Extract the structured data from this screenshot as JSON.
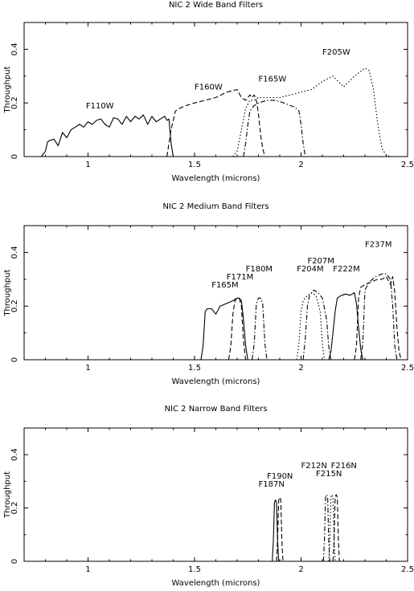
{
  "chart_data": [
    {
      "type": "line",
      "title": "NIC 2 Wide Band Filters",
      "xlabel": "Wavelength (microns)",
      "ylabel": "Throughput",
      "xlim": [
        0.7,
        2.5
      ],
      "ylim": [
        0,
        0.5
      ],
      "xticks": [
        1,
        1.5,
        2,
        2.5
      ],
      "xtick_labels": [
        "1",
        "1.5",
        "2",
        "2.5"
      ],
      "yticks": [
        0,
        0.2,
        0.4
      ],
      "ytick_labels": [
        "0",
        "0.2",
        "0.4"
      ],
      "grid": false,
      "series": [
        {
          "name": "F110W",
          "style": "solid",
          "label_pos": [
            0.99,
            0.18
          ],
          "x": [
            0.78,
            0.8,
            0.81,
            0.82,
            0.84,
            0.86,
            0.88,
            0.9,
            0.92,
            0.94,
            0.96,
            0.98,
            1.0,
            1.02,
            1.04,
            1.06,
            1.08,
            1.1,
            1.12,
            1.14,
            1.16,
            1.18,
            1.2,
            1.22,
            1.24,
            1.26,
            1.28,
            1.3,
            1.32,
            1.34,
            1.36,
            1.37,
            1.38,
            1.39,
            1.4
          ],
          "y": [
            0,
            0.02,
            0.055,
            0.06,
            0.065,
            0.04,
            0.09,
            0.07,
            0.1,
            0.11,
            0.12,
            0.11,
            0.13,
            0.12,
            0.135,
            0.14,
            0.12,
            0.11,
            0.145,
            0.14,
            0.12,
            0.15,
            0.13,
            0.15,
            0.14,
            0.155,
            0.12,
            0.15,
            0.13,
            0.14,
            0.15,
            0.135,
            0.14,
            0.05,
            0
          ]
        },
        {
          "name": "F160W",
          "style": "dashed",
          "label_pos": [
            1.5,
            0.25
          ],
          "x": [
            1.37,
            1.39,
            1.41,
            1.43,
            1.46,
            1.5,
            1.55,
            1.6,
            1.65,
            1.7,
            1.72,
            1.74,
            1.76,
            1.77,
            1.78,
            1.79,
            1.8,
            1.81,
            1.82,
            1.83
          ],
          "y": [
            0,
            0.1,
            0.17,
            0.18,
            0.19,
            0.2,
            0.21,
            0.22,
            0.24,
            0.25,
            0.22,
            0.21,
            0.23,
            0.22,
            0.23,
            0.21,
            0.16,
            0.08,
            0.03,
            0
          ]
        },
        {
          "name": "F165W",
          "style": "dashdot",
          "label_pos": [
            1.8,
            0.28
          ],
          "x": [
            1.73,
            1.74,
            1.75,
            1.76,
            1.78,
            1.8,
            1.84,
            1.88,
            1.92,
            1.95,
            1.97,
            1.99,
            2.0,
            2.01,
            2.02
          ],
          "y": [
            0,
            0.05,
            0.12,
            0.17,
            0.19,
            0.2,
            0.21,
            0.21,
            0.2,
            0.19,
            0.185,
            0.17,
            0.12,
            0.05,
            0
          ]
        },
        {
          "name": "F205W",
          "style": "dotted",
          "label_pos": [
            2.1,
            0.38
          ],
          "x": [
            1.68,
            1.7,
            1.72,
            1.74,
            1.76,
            1.78,
            1.8,
            1.85,
            1.9,
            1.95,
            2.0,
            2.05,
            2.1,
            2.15,
            2.2,
            2.25,
            2.3,
            2.32,
            2.34,
            2.36,
            2.38,
            2.4,
            2.42
          ],
          "y": [
            0,
            0.02,
            0.1,
            0.18,
            0.21,
            0.21,
            0.22,
            0.22,
            0.22,
            0.23,
            0.24,
            0.25,
            0.28,
            0.3,
            0.26,
            0.3,
            0.33,
            0.32,
            0.25,
            0.12,
            0.03,
            0.005,
            0
          ]
        }
      ]
    },
    {
      "type": "line",
      "title": "NIC 2 Medium Band Filters",
      "xlabel": "Wavelength (microns)",
      "ylabel": "Throughput",
      "xlim": [
        0.7,
        2.5
      ],
      "ylim": [
        0,
        0.5
      ],
      "xticks": [
        1,
        1.5,
        2,
        2.5
      ],
      "xtick_labels": [
        "1",
        "1.5",
        "2",
        "2.5"
      ],
      "yticks": [
        0,
        0.2,
        0.4
      ],
      "ytick_labels": [
        "0",
        "0.2",
        "0.4"
      ],
      "grid": false,
      "series": [
        {
          "name": "F165M",
          "style": "solid",
          "label_pos": [
            1.58,
            0.27
          ],
          "x": [
            1.53,
            1.54,
            1.55,
            1.56,
            1.58,
            1.6,
            1.62,
            1.65,
            1.68,
            1.7,
            1.71,
            1.72,
            1.73,
            1.74,
            1.75
          ],
          "y": [
            0,
            0.05,
            0.18,
            0.19,
            0.19,
            0.17,
            0.2,
            0.21,
            0.22,
            0.23,
            0.23,
            0.22,
            0.15,
            0.05,
            0
          ]
        },
        {
          "name": "F171M",
          "style": "dashed",
          "label_pos": [
            1.65,
            0.3
          ],
          "x": [
            1.66,
            1.67,
            1.68,
            1.69,
            1.7,
            1.71,
            1.72,
            1.73,
            1.74
          ],
          "y": [
            0,
            0.05,
            0.17,
            0.22,
            0.23,
            0.23,
            0.2,
            0.07,
            0
          ]
        },
        {
          "name": "F180M",
          "style": "dashdot",
          "label_pos": [
            1.74,
            0.33
          ],
          "x": [
            1.77,
            1.78,
            1.79,
            1.8,
            1.81,
            1.82,
            1.83,
            1.84
          ],
          "y": [
            0,
            0.06,
            0.21,
            0.23,
            0.23,
            0.21,
            0.06,
            0
          ]
        },
        {
          "name": "F204M",
          "style": "dotted",
          "label_pos": [
            1.98,
            0.33
          ],
          "x": [
            1.98,
            1.99,
            2.0,
            2.01,
            2.03,
            2.05,
            2.07,
            2.09,
            2.1,
            2.11
          ],
          "y": [
            0,
            0.06,
            0.18,
            0.22,
            0.24,
            0.25,
            0.24,
            0.18,
            0.06,
            0
          ]
        },
        {
          "name": "F207M",
          "style": "dashdot",
          "label_pos": [
            2.03,
            0.36
          ],
          "x": [
            2.01,
            2.02,
            2.03,
            2.04,
            2.06,
            2.08,
            2.1,
            2.12,
            2.13,
            2.14
          ],
          "y": [
            0,
            0.08,
            0.2,
            0.24,
            0.26,
            0.25,
            0.23,
            0.15,
            0.05,
            0
          ]
        },
        {
          "name": "F222M",
          "style": "solid",
          "label_pos": [
            2.15,
            0.33
          ],
          "x": [
            2.13,
            2.14,
            2.15,
            2.16,
            2.17,
            2.19,
            2.21,
            2.23,
            2.25,
            2.26,
            2.27,
            2.28,
            2.29
          ],
          "y": [
            0,
            0.03,
            0.1,
            0.18,
            0.23,
            0.24,
            0.245,
            0.24,
            0.25,
            0.21,
            0.12,
            0.04,
            0
          ]
        },
        {
          "name": "F237M",
          "style": "dashed",
          "label_pos": [
            2.3,
            0.42
          ],
          "x": [
            2.25,
            2.26,
            2.27,
            2.28,
            2.3,
            2.33,
            2.36,
            2.38,
            2.4,
            2.42,
            2.43,
            2.44,
            2.45,
            2.46,
            2.47
          ],
          "y": [
            0,
            0.05,
            0.23,
            0.27,
            0.28,
            0.29,
            0.3,
            0.3,
            0.31,
            0.28,
            0.31,
            0.25,
            0.12,
            0.03,
            0
          ]
        },
        {
          "name": "",
          "style": "dashdot",
          "x": [
            2.28,
            2.29,
            2.3,
            2.32,
            2.35,
            2.38,
            2.4,
            2.42,
            2.43,
            2.44,
            2.45
          ],
          "y": [
            0,
            0.06,
            0.26,
            0.29,
            0.31,
            0.32,
            0.32,
            0.3,
            0.2,
            0.05,
            0
          ]
        }
      ]
    },
    {
      "type": "line",
      "title": "NIC 2 Narrow Band Filters",
      "xlabel": "Wavelength (microns)",
      "ylabel": "Throughput",
      "xlim": [
        0.7,
        2.5
      ],
      "ylim": [
        0,
        0.5
      ],
      "xticks": [
        1,
        1.5,
        2,
        2.5
      ],
      "xtick_labels": [
        "1",
        "1.5",
        "2",
        "2.5"
      ],
      "yticks": [
        0,
        0.2,
        0.4
      ],
      "ytick_labels": [
        "0",
        "0.2",
        "0.4"
      ],
      "grid": false,
      "series": [
        {
          "name": "F187N",
          "style": "solid",
          "label_pos": [
            1.8,
            0.28
          ],
          "x": [
            1.865,
            1.87,
            1.875,
            1.88,
            1.885,
            1.89,
            1.895
          ],
          "y": [
            0,
            0.08,
            0.22,
            0.23,
            0.22,
            0.08,
            0
          ]
        },
        {
          "name": "F190N",
          "style": "dashed",
          "label_pos": [
            1.84,
            0.31
          ],
          "x": [
            1.885,
            1.89,
            1.895,
            1.9,
            1.905,
            1.91,
            1.915
          ],
          "y": [
            0,
            0.08,
            0.23,
            0.24,
            0.23,
            0.08,
            0
          ]
        },
        {
          "name": "F212N",
          "style": "dashdot",
          "label_pos": [
            2.0,
            0.35
          ],
          "x": [
            2.105,
            2.11,
            2.115,
            2.12,
            2.125,
            2.13,
            2.135
          ],
          "y": [
            0,
            0.08,
            0.24,
            0.25,
            0.24,
            0.08,
            0
          ]
        },
        {
          "name": "F215N",
          "style": "dotted",
          "label_pos": [
            2.07,
            0.32
          ],
          "x": [
            2.13,
            2.135,
            2.14,
            2.145,
            2.15,
            2.155,
            2.16
          ],
          "y": [
            0,
            0.08,
            0.24,
            0.25,
            0.24,
            0.08,
            0
          ]
        },
        {
          "name": "F216N",
          "style": "dashed",
          "label_pos": [
            2.14,
            0.35
          ],
          "x": [
            2.15,
            2.155,
            2.16,
            2.165,
            2.17,
            2.175,
            2.18
          ],
          "y": [
            0,
            0.08,
            0.24,
            0.25,
            0.24,
            0.08,
            0
          ]
        }
      ]
    }
  ]
}
